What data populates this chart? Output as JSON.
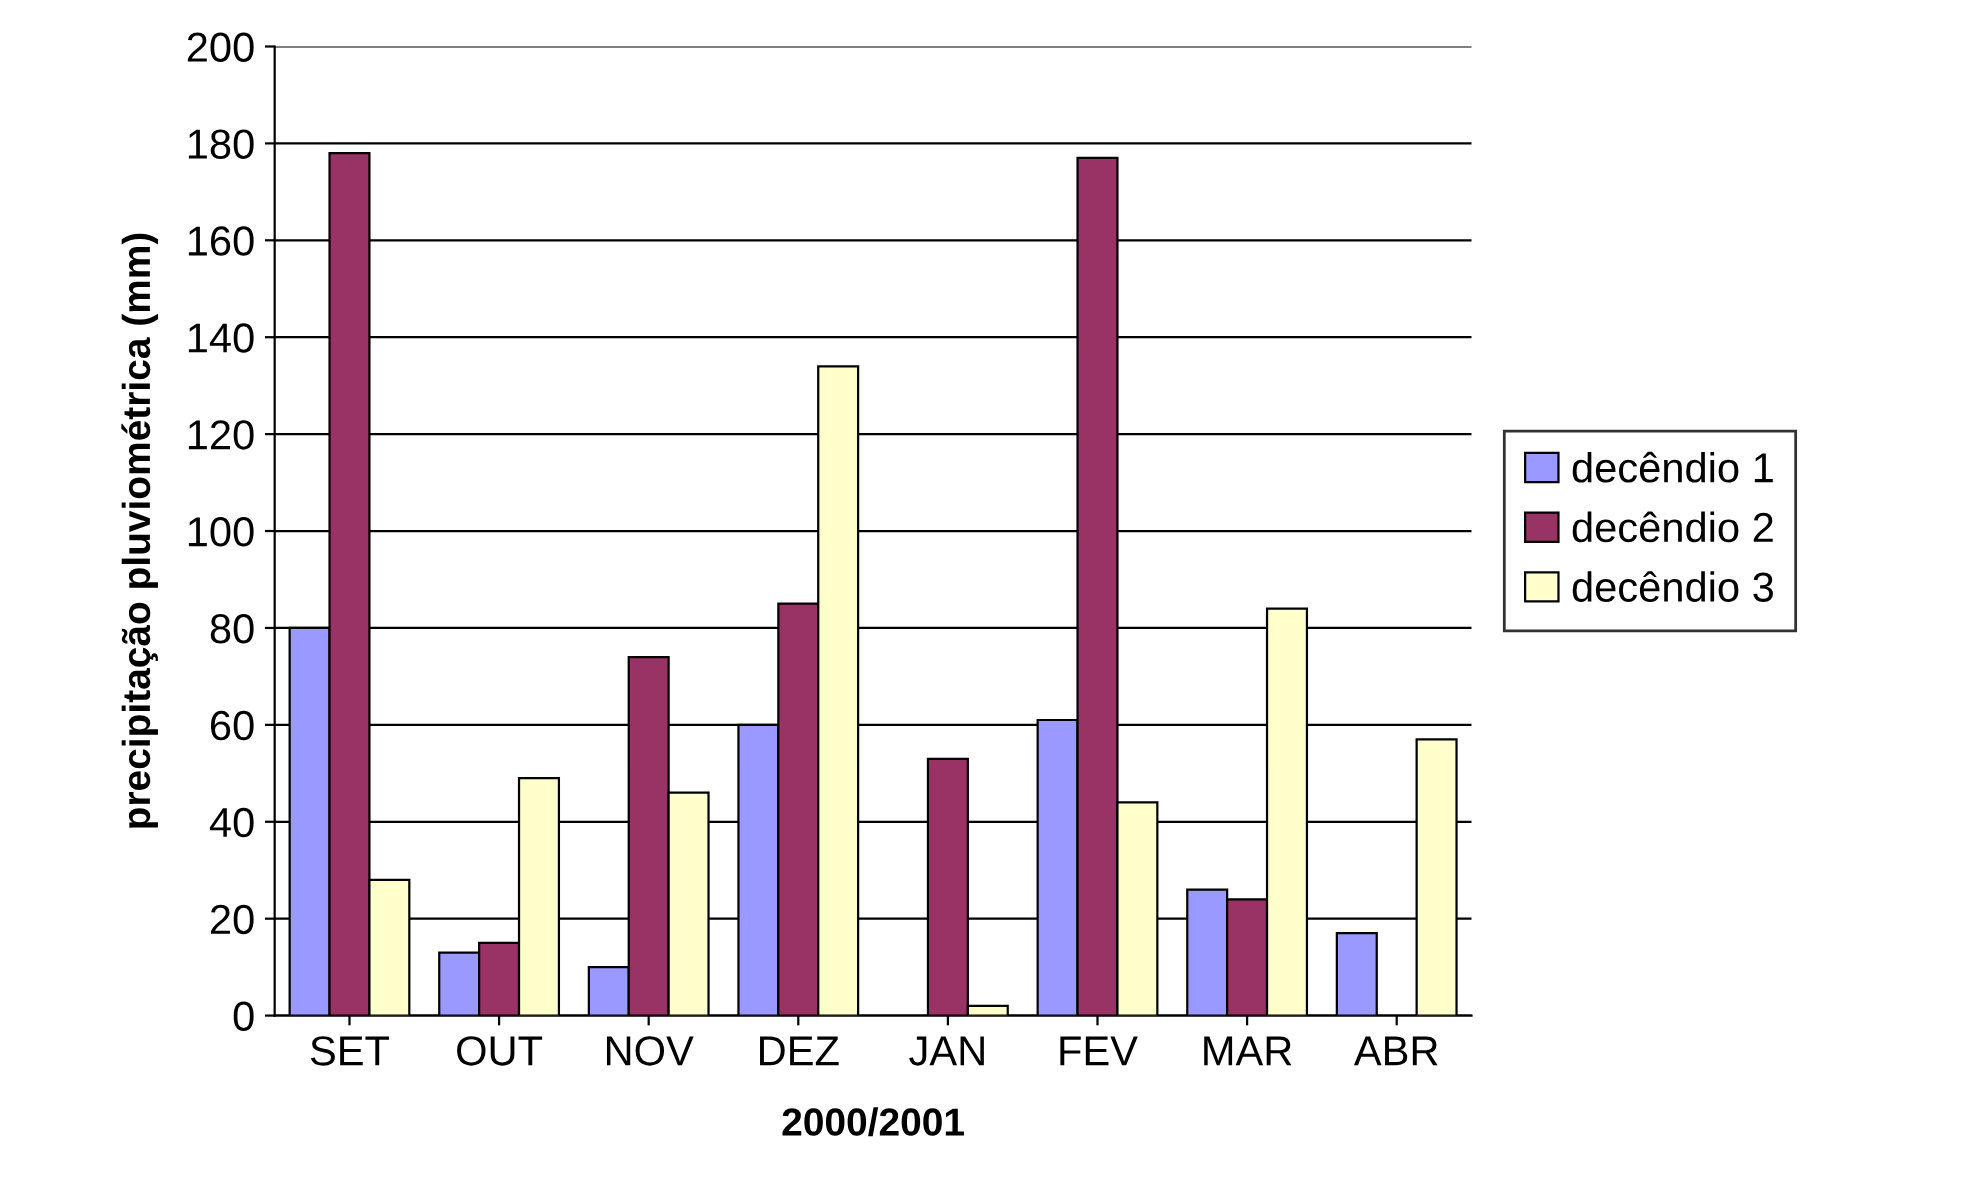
{
  "chart_data": {
    "type": "bar",
    "xlabel": "2000/2001",
    "ylabel": "precipitação pluviométrica (mm)",
    "categories": [
      "SET",
      "OUT",
      "NOV",
      "DEZ",
      "JAN",
      "FEV",
      "MAR",
      "ABR"
    ],
    "series": [
      {
        "name": "decêndio 1",
        "color": "#9999ff",
        "values": [
          80,
          13,
          10,
          60,
          null,
          61,
          26,
          17
        ]
      },
      {
        "name": "decêndio 2",
        "color": "#993366",
        "values": [
          178,
          15,
          74,
          85,
          53,
          177,
          24,
          null
        ]
      },
      {
        "name": "decêndio 3",
        "color": "#ffffcc",
        "values": [
          28,
          49,
          46,
          134,
          2,
          44,
          84,
          57
        ]
      }
    ],
    "ylim": [
      0,
      200
    ],
    "yticks": [
      0,
      20,
      40,
      60,
      80,
      100,
      120,
      140,
      160,
      180,
      200
    ],
    "grid": "y",
    "legend": "right"
  }
}
